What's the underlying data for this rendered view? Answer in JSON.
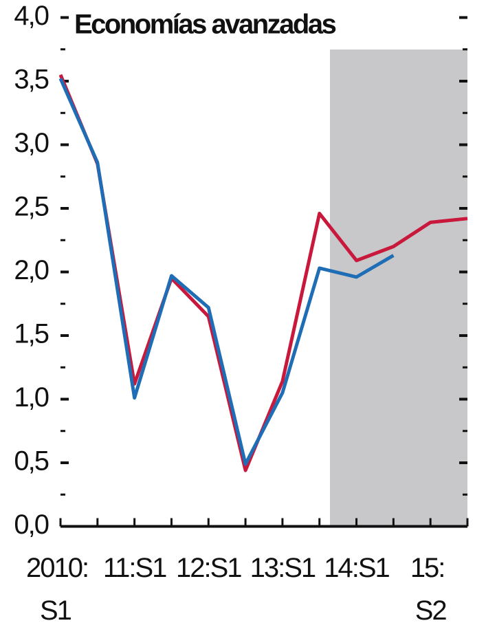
{
  "chart_data": {
    "type": "line",
    "title": "Economías avanzadas",
    "categories": [
      "2010: S1",
      null,
      "11:S1",
      null,
      "12:S1",
      null,
      "13:S1",
      null,
      "14:S1",
      null,
      "15: S2",
      null
    ],
    "series": [
      {
        "color": "#c8183c",
        "values": [
          3.55,
          2.85,
          1.12,
          1.95,
          1.65,
          0.44,
          1.14,
          2.46,
          2.09,
          2.2,
          2.39,
          2.42
        ]
      },
      {
        "color": "#1f6db5",
        "values": [
          3.52,
          2.86,
          1.01,
          1.97,
          1.72,
          0.49,
          1.05,
          2.03,
          1.96,
          2.13,
          null,
          null
        ]
      }
    ],
    "ylim": [
      0,
      4
    ],
    "yticks": [
      {
        "value": 0,
        "label": "0,0"
      },
      {
        "value": 0.5,
        "label": "0,5"
      },
      {
        "value": 1,
        "label": "1,0"
      },
      {
        "value": 1.5,
        "label": "1,5"
      },
      {
        "value": 2,
        "label": "2,0"
      },
      {
        "value": 2.5,
        "label": "2,5"
      },
      {
        "value": 3,
        "label": "3,0"
      },
      {
        "value": 3.5,
        "label": "3,5"
      },
      {
        "value": 4,
        "label": "4,0"
      }
    ],
    "minor_yticks": [
      0.25,
      0.75,
      1.25,
      1.75,
      2.25,
      2.75,
      3.25,
      3.75
    ]
  }
}
